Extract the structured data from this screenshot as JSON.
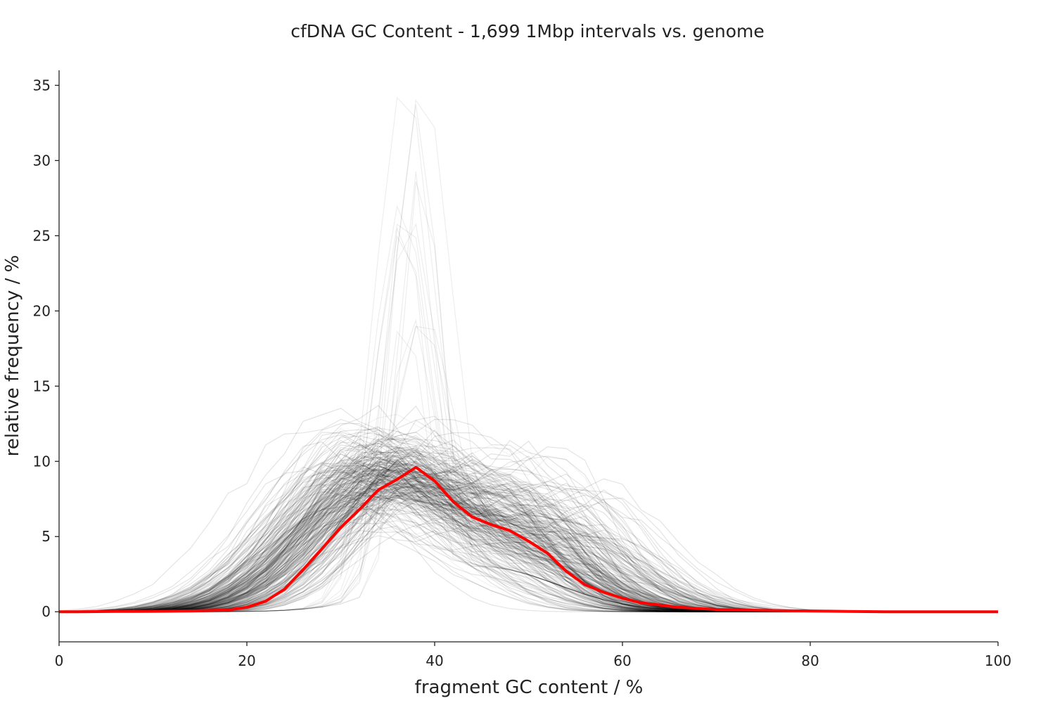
{
  "chart_data": {
    "type": "line",
    "title": "cfDNA GC Content - 1,699 1Mbp intervals vs. genome",
    "xlabel": "fragment GC content / %",
    "ylabel": "relative frequency / %",
    "xlim": [
      0,
      100
    ],
    "ylim": [
      -2,
      36
    ],
    "xticks": [
      0,
      20,
      40,
      60,
      80,
      100
    ],
    "yticks": [
      0,
      5,
      10,
      15,
      20,
      25,
      30,
      35
    ],
    "grid": false,
    "legend": "none",
    "interval_count": 1699,
    "series": [
      {
        "color": "#ff0000",
        "x": [
          0,
          2,
          4,
          6,
          8,
          10,
          12,
          14,
          16,
          18,
          20,
          22,
          24,
          26,
          28,
          30,
          32,
          34,
          36,
          38,
          40,
          42,
          44,
          46,
          48,
          50,
          52,
          54,
          56,
          58,
          60,
          62,
          64,
          66,
          68,
          70,
          72,
          74,
          76,
          78,
          80,
          82,
          84,
          86,
          88,
          90,
          92,
          94,
          96,
          98,
          100
        ],
        "values": [
          0.0,
          0.0,
          0.01,
          0.02,
          0.02,
          0.03,
          0.04,
          0.05,
          0.08,
          0.12,
          0.3,
          0.7,
          1.5,
          2.8,
          4.2,
          5.6,
          6.8,
          8.1,
          8.8,
          9.6,
          8.7,
          7.3,
          6.3,
          5.8,
          5.4,
          4.7,
          3.9,
          2.7,
          1.8,
          1.3,
          0.9,
          0.6,
          0.45,
          0.3,
          0.22,
          0.15,
          0.12,
          0.1,
          0.08,
          0.06,
          0.05,
          0.04,
          0.02,
          0.01,
          0.0,
          0.0,
          0.0,
          0.0,
          0.0,
          0.0,
          0.0
        ]
      }
    ],
    "background_colors": {
      "interval_lines": "#000000",
      "genome_line": "#ff0000",
      "axis": "#222222"
    }
  }
}
